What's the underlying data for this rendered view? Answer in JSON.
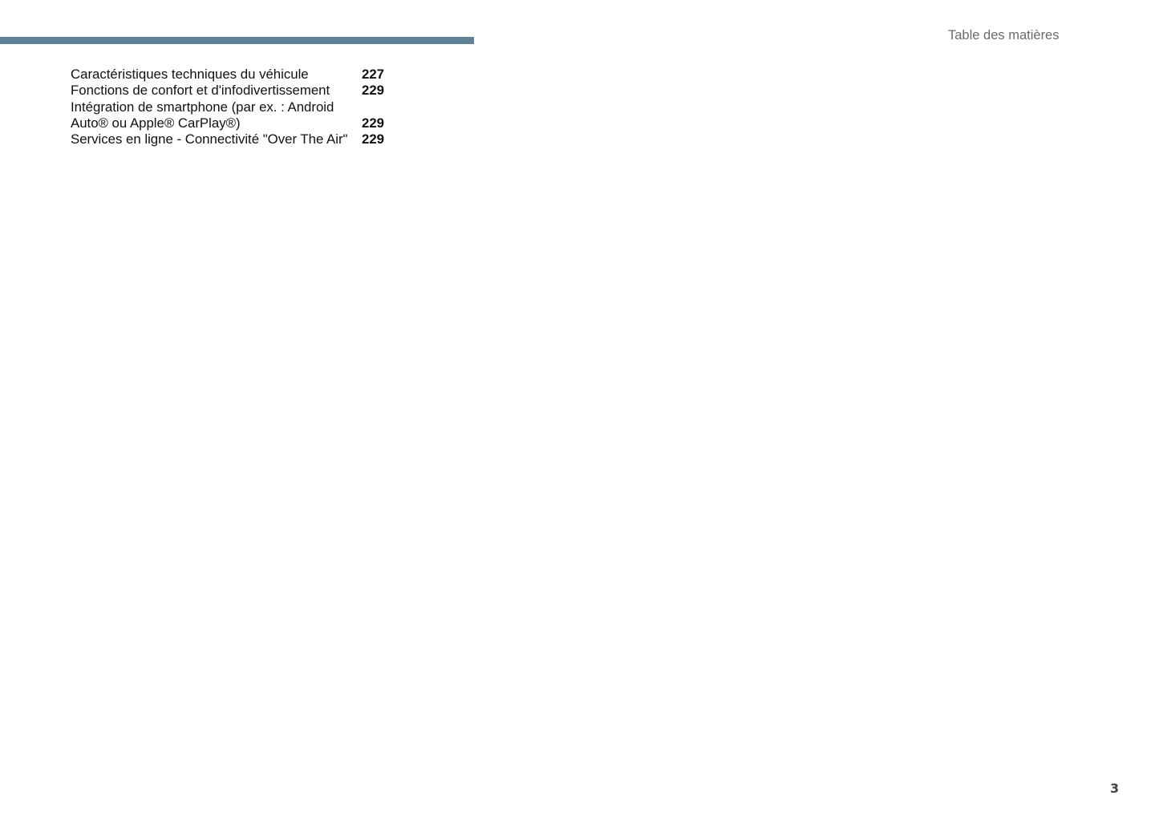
{
  "header": {
    "title": "Table des matières",
    "accent_color": "#5f8196"
  },
  "toc": [
    {
      "label": "Caractéristiques techniques du véhicule",
      "page": "227"
    },
    {
      "label": "Fonctions de confort et d'infodivertissement",
      "page": "229"
    },
    {
      "label": "Intégration de smartphone (par ex. : Android Auto® ou Apple® CarPlay®)",
      "label_line1": "Intégration de smartphone (par ex. : Android",
      "label_line2": "Auto® ou Apple® CarPlay®)",
      "page": "229"
    },
    {
      "label": "Services en ligne - Connectivité \"Over The Air\"",
      "page": "229"
    }
  ],
  "footer": {
    "page_number": "3"
  }
}
